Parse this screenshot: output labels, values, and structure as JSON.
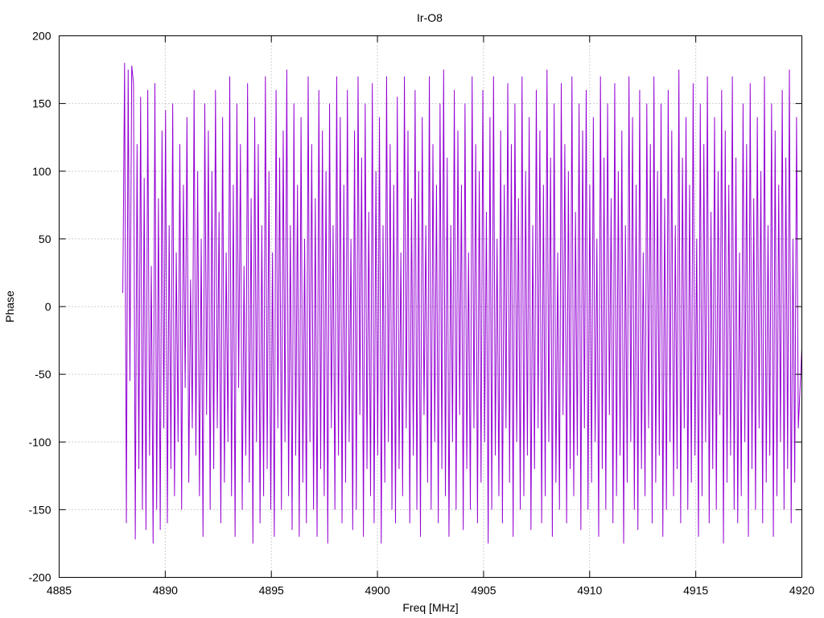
{
  "chart_data": {
    "type": "line",
    "title": "Ir-O8",
    "xlabel": "Freq [MHz]",
    "ylabel": "Phase",
    "xlim": [
      4885,
      4920
    ],
    "ylim": [
      -200,
      200
    ],
    "x_ticks": [
      4885,
      4890,
      4895,
      4900,
      4905,
      4910,
      4915,
      4920
    ],
    "y_ticks": [
      -200,
      -150,
      -100,
      -50,
      0,
      50,
      100,
      150,
      200
    ],
    "grid": true,
    "legend": "none",
    "series": [
      {
        "color": "#9400d3",
        "x_start": 4888.0,
        "x_end": 4920.0,
        "values": [
          10,
          180,
          -160,
          175,
          -55,
          178,
          165,
          -172,
          120,
          -120,
          155,
          -150,
          95,
          -165,
          160,
          -110,
          30,
          -175,
          165,
          -150,
          80,
          -165,
          130,
          -90,
          145,
          -160,
          60,
          -120,
          150,
          -140,
          40,
          -100,
          120,
          -150,
          90,
          -60,
          140,
          -130,
          20,
          -90,
          160,
          -110,
          100,
          -140,
          50,
          -170,
          150,
          -80,
          130,
          -150,
          100,
          -120,
          160,
          -90,
          70,
          -160,
          140,
          -130,
          40,
          -100,
          170,
          -140,
          90,
          -170,
          150,
          -60,
          120,
          -150,
          30,
          -110,
          165,
          -130,
          80,
          -175,
          140,
          -100,
          120,
          -160,
          60,
          -140,
          170,
          -120,
          100,
          -150,
          40,
          -170,
          160,
          -90,
          110,
          -150,
          130,
          -100,
          175,
          -140,
          60,
          -165,
          150,
          -110,
          90,
          -170,
          140,
          -130,
          50,
          -160,
          170,
          -100,
          120,
          -150,
          80,
          -170,
          160,
          -120,
          130,
          -140,
          100,
          -175,
          150,
          -90,
          60,
          -150,
          170,
          -110,
          140,
          -160,
          90,
          -130,
          160,
          -100,
          50,
          -165,
          130,
          -150,
          170,
          -80,
          110,
          -170,
          150,
          -120,
          70,
          -140,
          165,
          -160,
          100,
          -110,
          140,
          -175,
          60,
          -130,
          170,
          -100,
          120,
          -150,
          90,
          -160,
          155,
          -120,
          40,
          -140,
          170,
          -90,
          130,
          -160,
          80,
          -110,
          160,
          -150,
          100,
          -170,
          140,
          -80,
          60,
          -130,
          170,
          -150,
          120,
          -100,
          90,
          -160,
          150,
          -120,
          175,
          -140,
          110,
          -170,
          60,
          -100,
          160,
          -150,
          130,
          -80,
          90,
          -165,
          150,
          -120,
          40,
          -150,
          170,
          -90,
          120,
          -160,
          100,
          -130,
          160,
          -100,
          70,
          -175,
          140,
          -150,
          170,
          -110,
          50,
          -140,
          130,
          -160,
          90,
          -90,
          165,
          -130,
          120,
          -170,
          150,
          -100,
          80,
          -150,
          170,
          -140,
          100,
          -110,
          140,
          -165,
          60,
          -120,
          160,
          -90,
          130,
          -160,
          90,
          -140,
          175,
          -100,
          110,
          -170,
          150,
          -130,
          40,
          -150,
          165,
          -80,
          120,
          -160,
          100,
          -120,
          170,
          -140,
          70,
          -110,
          150,
          -165,
          130,
          -90,
          160,
          -150,
          90,
          -130,
          140,
          -100,
          50,
          -170,
          170,
          -120,
          110,
          -150,
          150,
          -80,
          80,
          -160,
          165,
          -140,
          100,
          -110,
          130,
          -175,
          60,
          -130,
          170,
          -100,
          140,
          -150,
          90,
          -165,
          160,
          -120,
          40,
          -140,
          150,
          -90,
          120,
          -160,
          170,
          -130,
          100,
          -110,
          150,
          -170,
          80,
          -150,
          160,
          -100,
          130,
          -140,
          60,
          -120,
          175,
          -160,
          110,
          -90,
          140,
          -150,
          90,
          -130,
          165,
          -110,
          50,
          -170,
          150,
          -140,
          120,
          -100,
          170,
          -160,
          70,
          -120,
          140,
          -150,
          100,
          -80,
          160,
          -175,
          130,
          -130,
          90,
          -110,
          170,
          -150,
          110,
          -160,
          40,
          -140,
          150,
          -100,
          120,
          -170,
          165,
          -120,
          80,
          -150,
          140,
          -90,
          100,
          -160,
          170,
          -130,
          60,
          -110,
          150,
          -170,
          130,
          -140,
          90,
          -100,
          160,
          -150,
          110,
          -120,
          175,
          -160,
          50,
          -130,
          140,
          -90,
          -60,
          -30
        ]
      }
    ]
  }
}
